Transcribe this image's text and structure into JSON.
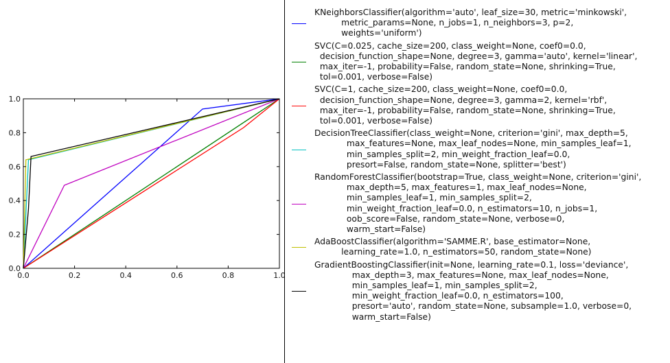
{
  "chart_data": {
    "type": "line",
    "xlim": [
      0,
      1
    ],
    "ylim": [
      0,
      1
    ],
    "x_ticks": [
      "0.0",
      "0.2",
      "0.4",
      "0.6",
      "0.8",
      "1.0"
    ],
    "y_ticks": [
      "0.0",
      "0.2",
      "0.4",
      "0.6",
      "0.8",
      "1.0"
    ],
    "grid": false,
    "legend_position": "right",
    "series": [
      {
        "name": "KNeighborsClassifier(algorithm='auto', leaf_size=30, metric='minkowski',\n          metric_params=None, n_jobs=1, n_neighbors=3, p=2,\n          weights='uniform')",
        "color": "#0000ff",
        "points": [
          [
            0,
            0
          ],
          [
            0.7,
            0.94
          ],
          [
            1,
            1
          ]
        ]
      },
      {
        "name": "SVC(C=0.025, cache_size=200, class_weight=None, coef0=0.0,\n  decision_function_shape=None, degree=3, gamma='auto', kernel='linear',\n  max_iter=-1, probability=False, random_state=None, shrinking=True,\n  tol=0.001, verbose=False)",
        "color": "#008000",
        "points": [
          [
            0,
            0
          ],
          [
            1,
            1
          ]
        ]
      },
      {
        "name": "SVC(C=1, cache_size=200, class_weight=None, coef0=0.0,\n  decision_function_shape=None, degree=3, gamma=2, kernel='rbf',\n  max_iter=-1, probability=False, random_state=None, shrinking=True,\n  tol=0.001, verbose=False)",
        "color": "#ff0000",
        "points": [
          [
            0,
            0
          ],
          [
            0.86,
            0.83
          ],
          [
            1,
            1
          ]
        ]
      },
      {
        "name": "DecisionTreeClassifier(class_weight=None, criterion='gini', max_depth=5,\n            max_features=None, max_leaf_nodes=None, min_samples_leaf=1,\n            min_samples_split=2, min_weight_fraction_leaf=0.0,\n            presort=False, random_state=None, splitter='best')",
        "color": "#00bfbf",
        "points": [
          [
            0,
            0
          ],
          [
            0.02,
            0.64
          ],
          [
            1,
            1
          ]
        ]
      },
      {
        "name": "RandomForestClassifier(bootstrap=True, class_weight=None, criterion='gini',\n            max_depth=5, max_features=1, max_leaf_nodes=None,\n            min_samples_leaf=1, min_samples_split=2,\n            min_weight_fraction_leaf=0.0, n_estimators=10, n_jobs=1,\n            oob_score=False, random_state=None, verbose=0,\n            warm_start=False)",
        "color": "#bf00bf",
        "points": [
          [
            0,
            0
          ],
          [
            0.16,
            0.49
          ],
          [
            1,
            1
          ]
        ]
      },
      {
        "name": "AdaBoostClassifier(algorithm='SAMME.R', base_estimator=None,\n          learning_rate=1.0, n_estimators=50, random_state=None)",
        "color": "#bfbf00",
        "points": [
          [
            0,
            0
          ],
          [
            0.01,
            0.64
          ],
          [
            1,
            1
          ]
        ]
      },
      {
        "name": "GradientBoostingClassifier(init=None, learning_rate=0.1, loss='deviance',\n              max_depth=3, max_features=None, max_leaf_nodes=None,\n              min_samples_leaf=1, min_samples_split=2,\n              min_weight_fraction_leaf=0.0, n_estimators=100,\n              presort='auto', random_state=None, subsample=1.0, verbose=0,\n              warm_start=False)",
        "color": "#000000",
        "points": [
          [
            0,
            0
          ],
          [
            0.02,
            0.35
          ],
          [
            0.03,
            0.66
          ],
          [
            1,
            1
          ]
        ]
      }
    ]
  }
}
